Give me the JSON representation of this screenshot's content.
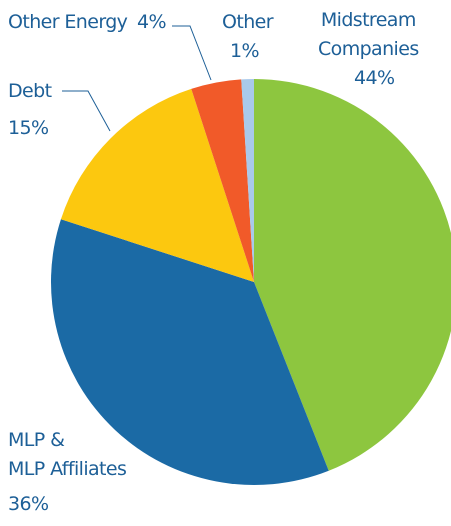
{
  "chart_data": {
    "type": "pie",
    "categories": [
      "Midstream\nCompanies",
      "MLP &\nMLP Affiliates",
      "Debt",
      "Other Energy",
      "Other"
    ],
    "values": [
      44,
      36,
      15,
      4,
      1
    ],
    "value_labels": [
      "44%",
      "36%",
      "15%",
      "4%",
      "1%"
    ],
    "colors": [
      "#8dc63f",
      "#1b6aa5",
      "#fcc80f",
      "#f15a29",
      "#a9c9ea"
    ]
  }
}
